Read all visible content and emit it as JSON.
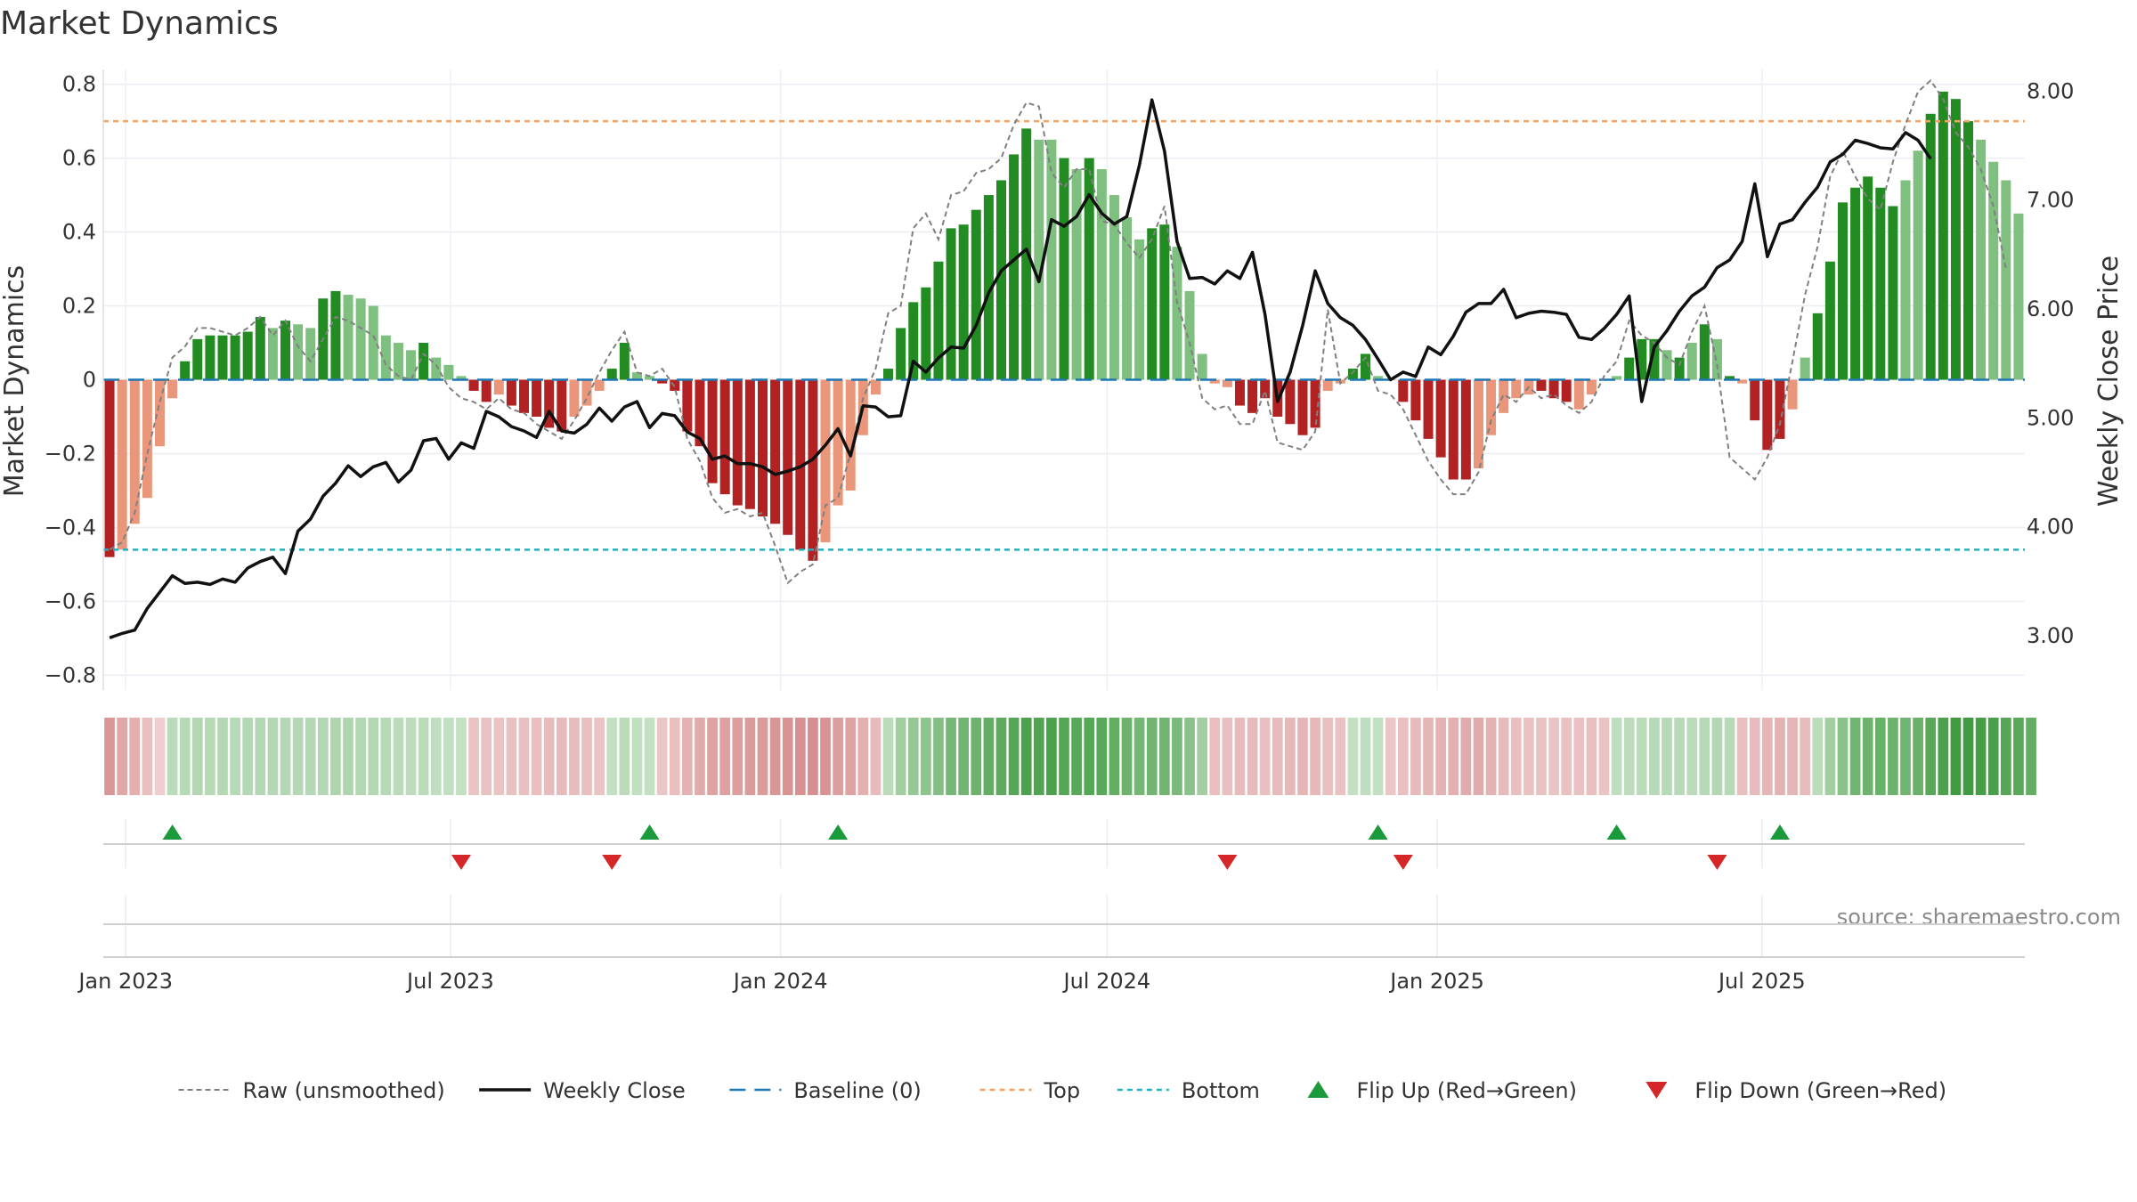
{
  "chart_data": {
    "type": "bar",
    "title": "Market Dynamics",
    "ylabel": "Market Dynamics",
    "y2label": "Weekly Close Price",
    "ylim": [
      -0.84,
      0.84
    ],
    "y2lim": [
      2.5,
      8.2
    ],
    "yticks": [
      "−0.8",
      "−0.6",
      "−0.4",
      "−0.2",
      "0",
      "0.2",
      "0.4",
      "0.6",
      "0.8"
    ],
    "y2ticks": [
      "3.00",
      "4.00",
      "5.00",
      "6.00",
      "7.00",
      "8.00"
    ],
    "x_start": "2022-12-23",
    "x_step_days": 7,
    "xticks": [
      {
        "date": "2023-01-01",
        "label": "Jan 2023"
      },
      {
        "date": "2023-07-01",
        "label": "Jul 2023"
      },
      {
        "date": "2024-01-01",
        "label": "Jan 2024"
      },
      {
        "date": "2024-07-01",
        "label": "Jul 2024"
      },
      {
        "date": "2025-01-01",
        "label": "Jan 2025"
      },
      {
        "date": "2025-07-01",
        "label": "Jul 2025"
      }
    ],
    "top_level": 0.7,
    "bottom_level": -0.46,
    "grid": true,
    "legend_position": "bottom",
    "source_text": "source: sharemaestro.com",
    "colors": {
      "strong_green": "#228b22",
      "light_green": "#7fbf7f",
      "strong_red": "#b22222",
      "light_red": "#e9967a",
      "close_line": "#111111",
      "raw_line": "#808080",
      "baseline": "#1f77b4",
      "top": "#f4a460",
      "bottom": "#20b2c0",
      "flip_up": "#1a9a3a",
      "flip_down": "#d62728"
    },
    "momentum_values": [
      -0.48,
      -0.46,
      -0.39,
      -0.32,
      -0.18,
      -0.05,
      0.05,
      0.11,
      0.12,
      0.12,
      0.12,
      0.13,
      0.17,
      0.14,
      0.16,
      0.15,
      0.14,
      0.22,
      0.24,
      0.23,
      0.22,
      0.2,
      0.12,
      0.1,
      0.08,
      0.1,
      0.06,
      0.04,
      0.01,
      -0.03,
      -0.06,
      -0.04,
      -0.07,
      -0.09,
      -0.1,
      -0.13,
      -0.14,
      -0.1,
      -0.07,
      -0.03,
      0.03,
      0.1,
      0.02,
      0.01,
      -0.01,
      -0.03,
      -0.14,
      -0.18,
      -0.28,
      -0.31,
      -0.34,
      -0.35,
      -0.37,
      -0.39,
      -0.42,
      -0.46,
      -0.49,
      -0.44,
      -0.34,
      -0.3,
      -0.15,
      -0.04,
      0.03,
      0.14,
      0.21,
      0.25,
      0.32,
      0.41,
      0.42,
      0.46,
      0.5,
      0.54,
      0.61,
      0.68,
      0.65,
      0.65,
      0.6,
      0.57,
      0.6,
      0.57,
      0.5,
      0.44,
      0.38,
      0.41,
      0.42,
      0.36,
      0.24,
      0.07,
      -0.01,
      -0.02,
      -0.07,
      -0.09,
      -0.05,
      -0.1,
      -0.12,
      -0.15,
      -0.13,
      -0.03,
      -0.01,
      0.03,
      0.07,
      0.01,
      0.0,
      -0.06,
      -0.11,
      -0.16,
      -0.21,
      -0.27,
      -0.27,
      -0.24,
      -0.15,
      -0.09,
      -0.05,
      -0.04,
      -0.03,
      -0.05,
      -0.06,
      -0.08,
      -0.04,
      0.0,
      0.01,
      0.06,
      0.11,
      0.11,
      0.08,
      0.06,
      0.1,
      0.15,
      0.11,
      0.01,
      -0.01,
      -0.11,
      -0.19,
      -0.16,
      -0.08,
      0.06,
      0.18,
      0.32,
      0.48,
      0.52,
      0.55,
      0.52,
      0.47,
      0.54,
      0.62,
      0.72,
      0.78,
      0.76,
      0.7,
      0.65,
      0.59,
      0.54,
      0.45
    ],
    "momentum_strength": [
      "s",
      "l",
      "l",
      "l",
      "l",
      "l",
      "s",
      "s",
      "s",
      "s",
      "s",
      "s",
      "s",
      "l",
      "s",
      "l",
      "l",
      "s",
      "s",
      "l",
      "l",
      "l",
      "l",
      "l",
      "l",
      "s",
      "l",
      "l",
      "l",
      "s",
      "s",
      "l",
      "s",
      "s",
      "s",
      "s",
      "s",
      "l",
      "l",
      "l",
      "s",
      "s",
      "l",
      "l",
      "s",
      "s",
      "s",
      "s",
      "s",
      "s",
      "s",
      "s",
      "s",
      "s",
      "s",
      "s",
      "s",
      "l",
      "l",
      "l",
      "l",
      "l",
      "s",
      "s",
      "s",
      "s",
      "s",
      "s",
      "s",
      "s",
      "s",
      "s",
      "s",
      "s",
      "l",
      "l",
      "s",
      "l",
      "s",
      "l",
      "l",
      "l",
      "l",
      "s",
      "s",
      "l",
      "l",
      "l",
      "l",
      "l",
      "s",
      "s",
      "s",
      "s",
      "s",
      "s",
      "s",
      "l",
      "l",
      "s",
      "s",
      "l",
      "l",
      "s",
      "s",
      "s",
      "s",
      "s",
      "s",
      "l",
      "l",
      "l",
      "l",
      "l",
      "s",
      "s",
      "s",
      "l",
      "l",
      "l",
      "l",
      "s",
      "s",
      "s",
      "l",
      "s",
      "l",
      "s",
      "l",
      "s",
      "l",
      "s",
      "s",
      "s",
      "l",
      "l",
      "s",
      "s",
      "s",
      "s",
      "s",
      "s",
      "s",
      "l",
      "l",
      "s",
      "s",
      "s",
      "s",
      "l",
      "l",
      "l",
      "l",
      "l",
      "l"
    ],
    "raw_values": [
      -0.46,
      -0.44,
      -0.36,
      -0.2,
      -0.06,
      0.06,
      0.09,
      0.14,
      0.14,
      0.13,
      0.12,
      0.14,
      0.17,
      0.12,
      0.16,
      0.09,
      0.05,
      0.11,
      0.17,
      0.16,
      0.14,
      0.12,
      0.04,
      0.01,
      0.0,
      0.07,
      0.04,
      -0.02,
      -0.05,
      -0.06,
      -0.08,
      -0.05,
      -0.08,
      -0.09,
      -0.12,
      -0.14,
      -0.16,
      -0.11,
      -0.05,
      0.02,
      0.08,
      0.13,
      0.02,
      0.01,
      0.03,
      -0.02,
      -0.16,
      -0.22,
      -0.32,
      -0.36,
      -0.35,
      -0.37,
      -0.36,
      -0.45,
      -0.55,
      -0.52,
      -0.5,
      -0.34,
      -0.32,
      -0.2,
      -0.05,
      0.03,
      0.18,
      0.2,
      0.41,
      0.45,
      0.38,
      0.5,
      0.51,
      0.56,
      0.57,
      0.6,
      0.69,
      0.75,
      0.74,
      0.56,
      0.52,
      0.57,
      0.57,
      0.43,
      0.42,
      0.37,
      0.33,
      0.38,
      0.47,
      0.21,
      0.1,
      -0.05,
      -0.08,
      -0.07,
      -0.12,
      -0.12,
      -0.03,
      -0.17,
      -0.18,
      -0.19,
      -0.14,
      0.19,
      -0.01,
      0.02,
      0.06,
      -0.03,
      -0.04,
      -0.08,
      -0.15,
      -0.22,
      -0.27,
      -0.31,
      -0.31,
      -0.25,
      -0.11,
      -0.04,
      -0.06,
      -0.02,
      -0.05,
      -0.04,
      -0.07,
      -0.09,
      -0.06,
      0.01,
      0.05,
      0.16,
      0.12,
      0.1,
      0.06,
      0.04,
      0.13,
      0.2,
      0.04,
      -0.21,
      -0.24,
      -0.27,
      -0.21,
      -0.12,
      0.05,
      0.23,
      0.36,
      0.55,
      0.62,
      0.55,
      0.49,
      0.46,
      0.59,
      0.69,
      0.78,
      0.81,
      0.76,
      0.67,
      0.63,
      0.57,
      0.47,
      0.3
    ],
    "close_values": [
      2.98,
      3.02,
      3.05,
      3.25,
      3.4,
      3.55,
      3.48,
      3.49,
      3.47,
      3.52,
      3.49,
      3.62,
      3.68,
      3.72,
      3.57,
      3.96,
      4.07,
      4.28,
      4.4,
      4.56,
      4.46,
      4.55,
      4.59,
      4.41,
      4.52,
      4.79,
      4.81,
      4.62,
      4.77,
      4.72,
      5.06,
      5.01,
      4.92,
      4.88,
      4.82,
      5.06,
      4.88,
      4.86,
      4.94,
      5.09,
      4.97,
      5.1,
      5.15,
      4.91,
      5.04,
      5.02,
      4.87,
      4.81,
      4.62,
      4.65,
      4.58,
      4.58,
      4.55,
      4.48,
      4.51,
      4.55,
      4.62,
      4.75,
      4.9,
      4.65,
      5.11,
      5.1,
      5.01,
      5.02,
      5.52,
      5.42,
      5.55,
      5.65,
      5.64,
      5.85,
      6.15,
      6.35,
      6.45,
      6.55,
      6.25,
      6.82,
      6.76,
      6.85,
      7.05,
      6.88,
      6.78,
      6.85,
      7.32,
      7.92,
      7.45,
      6.62,
      6.28,
      6.29,
      6.23,
      6.35,
      6.28,
      6.52,
      5.95,
      5.15,
      5.42,
      5.85,
      6.35,
      6.05,
      5.92,
      5.85,
      5.72,
      5.54,
      5.35,
      5.42,
      5.38,
      5.65,
      5.58,
      5.75,
      5.97,
      6.05,
      6.05,
      6.18,
      5.92,
      5.96,
      5.98,
      5.97,
      5.95,
      5.74,
      5.72,
      5.82,
      5.95,
      6.12,
      5.15,
      5.65,
      5.8,
      5.98,
      6.12,
      6.2,
      6.38,
      6.45,
      6.62,
      7.15,
      6.48,
      6.78,
      6.82,
      6.98,
      7.12,
      7.35,
      7.42,
      7.55,
      7.52,
      7.48,
      7.47,
      7.62,
      7.55,
      7.38
    ],
    "regime": [
      -0.25,
      -0.18,
      -0.15,
      -0.08,
      -0.02,
      0.1,
      0.12,
      0.14,
      0.12,
      0.13,
      0.12,
      0.13,
      0.14,
      0.13,
      0.14,
      0.13,
      0.13,
      0.14,
      0.15,
      0.15,
      0.14,
      0.14,
      0.12,
      0.1,
      0.09,
      0.1,
      0.08,
      0.07,
      0.06,
      -0.06,
      -0.07,
      -0.06,
      -0.07,
      -0.08,
      -0.08,
      -0.09,
      -0.1,
      -0.09,
      -0.08,
      -0.06,
      0.06,
      0.1,
      0.07,
      0.06,
      -0.05,
      -0.08,
      -0.14,
      -0.16,
      -0.2,
      -0.21,
      -0.22,
      -0.23,
      -0.23,
      -0.25,
      -0.26,
      -0.27,
      -0.28,
      -0.26,
      -0.22,
      -0.2,
      -0.15,
      -0.1,
      0.1,
      0.2,
      0.25,
      0.28,
      0.32,
      0.38,
      0.4,
      0.42,
      0.45,
      0.48,
      0.52,
      0.55,
      0.54,
      0.55,
      0.52,
      0.5,
      0.52,
      0.5,
      0.45,
      0.42,
      0.38,
      0.4,
      0.4,
      0.36,
      0.3,
      0.2,
      -0.08,
      -0.08,
      -0.1,
      -0.1,
      -0.08,
      -0.1,
      -0.11,
      -0.12,
      -0.11,
      -0.08,
      -0.07,
      0.06,
      0.08,
      0.06,
      -0.05,
      -0.08,
      -0.1,
      -0.12,
      -0.14,
      -0.15,
      -0.16,
      -0.16,
      -0.14,
      -0.1,
      -0.08,
      -0.07,
      -0.07,
      -0.06,
      -0.07,
      -0.07,
      -0.08,
      -0.06,
      0.08,
      0.09,
      0.1,
      0.12,
      0.12,
      0.11,
      0.1,
      0.12,
      0.14,
      0.12,
      -0.08,
      -0.1,
      -0.12,
      -0.14,
      -0.13,
      -0.1,
      0.1,
      0.2,
      0.3,
      0.4,
      0.42,
      0.44,
      0.42,
      0.4,
      0.44,
      0.5,
      0.55,
      0.6,
      0.6,
      0.58,
      0.56,
      0.52,
      0.5,
      0.45
    ],
    "flip_up_indices": [
      5,
      43,
      58,
      101,
      120,
      133
    ],
    "flip_down_indices": [
      28,
      40,
      89,
      103,
      128
    ],
    "legend": [
      {
        "key": "raw",
        "label": "Raw (unsmoothed)"
      },
      {
        "key": "close",
        "label": "Weekly Close"
      },
      {
        "key": "baseline",
        "label": "Baseline (0)"
      },
      {
        "key": "top",
        "label": "Top"
      },
      {
        "key": "bottom",
        "label": "Bottom"
      },
      {
        "key": "flip_up",
        "label": "Flip Up (Red→Green)"
      },
      {
        "key": "flip_down",
        "label": "Flip Down (Green→Red)"
      }
    ]
  }
}
